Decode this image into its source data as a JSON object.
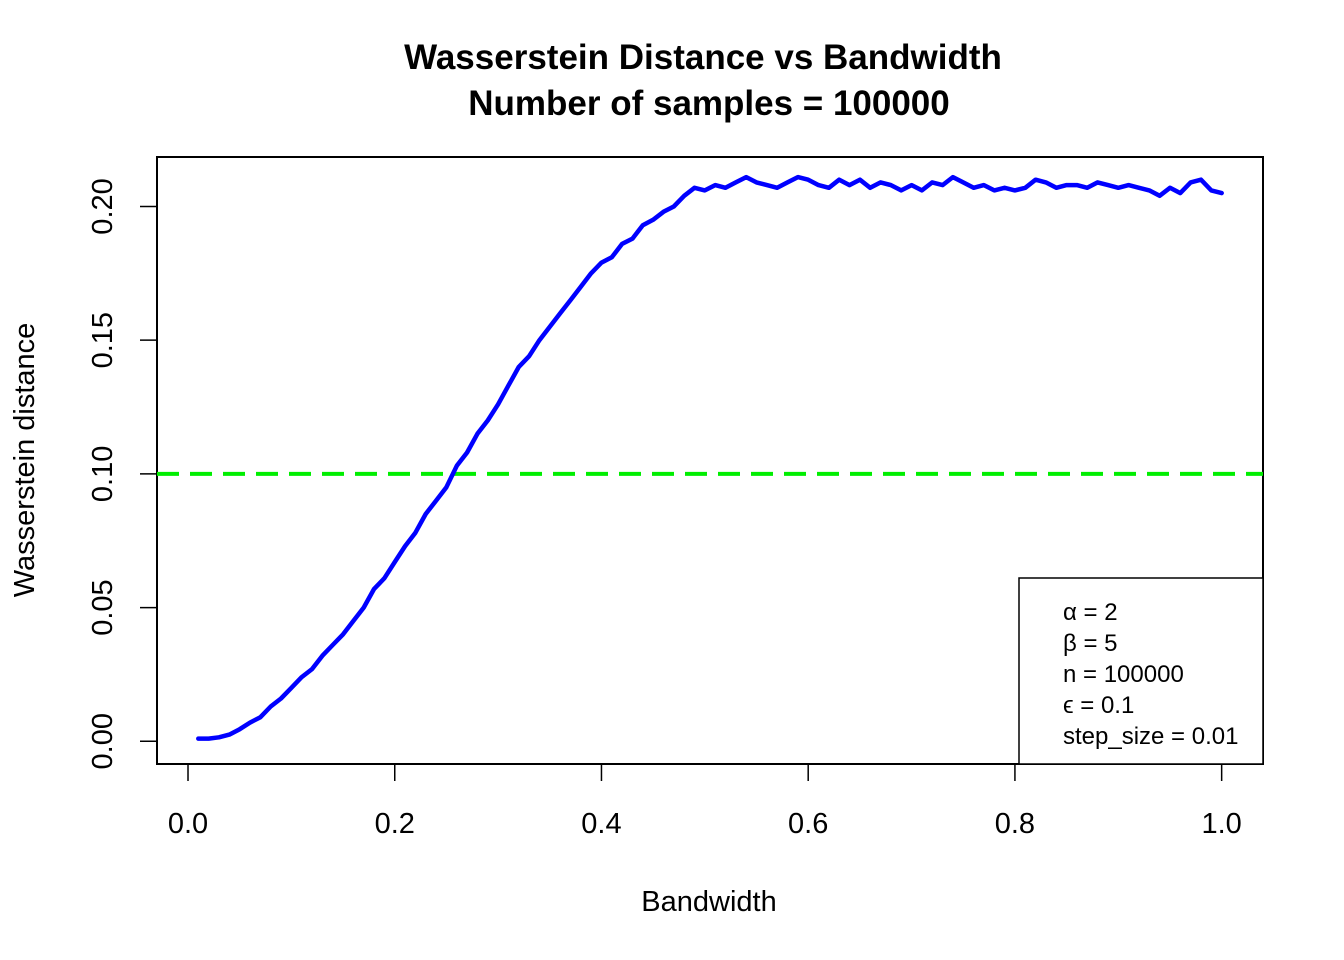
{
  "chart_data": {
    "type": "line",
    "title": "Wasserstein Distance vs Bandwidth",
    "subtitle": "Number of samples = 100000",
    "xlabel": "Bandwidth",
    "ylabel": "Wasserstein distance",
    "xlim": [
      -0.03,
      1.04
    ],
    "ylim": [
      -0.0085,
      0.2185
    ],
    "x_ticks": [
      0.0,
      0.2,
      0.4,
      0.6,
      0.8,
      1.0
    ],
    "x_tick_labels": [
      "0.0",
      "0.2",
      "0.4",
      "0.6",
      "0.8",
      "1.0"
    ],
    "y_ticks": [
      0.0,
      0.05,
      0.1,
      0.15,
      0.2
    ],
    "y_tick_labels": [
      "0.00",
      "0.05",
      "0.10",
      "0.15",
      "0.20"
    ],
    "grid": false,
    "series": [
      {
        "color": "#0000ff",
        "x": [
          0.01,
          0.02,
          0.03,
          0.04,
          0.05,
          0.06,
          0.07,
          0.08,
          0.09,
          0.1,
          0.11,
          0.12,
          0.13,
          0.14,
          0.15,
          0.16,
          0.17,
          0.18,
          0.19,
          0.2,
          0.21,
          0.22,
          0.23,
          0.24,
          0.25,
          0.26,
          0.27,
          0.28,
          0.29,
          0.3,
          0.31,
          0.32,
          0.33,
          0.34,
          0.35,
          0.36,
          0.37,
          0.38,
          0.39,
          0.4,
          0.41,
          0.42,
          0.43,
          0.44,
          0.45,
          0.46,
          0.47,
          0.48,
          0.49,
          0.5,
          0.51,
          0.52,
          0.53,
          0.54,
          0.55,
          0.56,
          0.57,
          0.58,
          0.59,
          0.6,
          0.61,
          0.62,
          0.63,
          0.64,
          0.65,
          0.66,
          0.67,
          0.68,
          0.69,
          0.7,
          0.71,
          0.72,
          0.73,
          0.74,
          0.75,
          0.76,
          0.77,
          0.78,
          0.79,
          0.8,
          0.81,
          0.82,
          0.83,
          0.84,
          0.85,
          0.86,
          0.87,
          0.88,
          0.89,
          0.9,
          0.91,
          0.92,
          0.93,
          0.94,
          0.95,
          0.96,
          0.97,
          0.98,
          0.99,
          1.0
        ],
        "y": [
          0.001,
          0.001,
          0.0015,
          0.0025,
          0.0045,
          0.007,
          0.009,
          0.013,
          0.016,
          0.02,
          0.024,
          0.027,
          0.032,
          0.036,
          0.04,
          0.045,
          0.05,
          0.057,
          0.061,
          0.067,
          0.073,
          0.078,
          0.085,
          0.09,
          0.095,
          0.103,
          0.108,
          0.115,
          0.12,
          0.126,
          0.133,
          0.14,
          0.144,
          0.15,
          0.155,
          0.16,
          0.165,
          0.17,
          0.175,
          0.179,
          0.181,
          0.186,
          0.188,
          0.193,
          0.195,
          0.198,
          0.2,
          0.204,
          0.207,
          0.206,
          0.208,
          0.207,
          0.209,
          0.211,
          0.209,
          0.208,
          0.207,
          0.209,
          0.211,
          0.21,
          0.208,
          0.207,
          0.21,
          0.208,
          0.21,
          0.207,
          0.209,
          0.208,
          0.206,
          0.208,
          0.206,
          0.209,
          0.208,
          0.211,
          0.209,
          0.207,
          0.208,
          0.206,
          0.207,
          0.206,
          0.207,
          0.21,
          0.209,
          0.207,
          0.208,
          0.208,
          0.207,
          0.209,
          0.208,
          0.207,
          0.208,
          0.207,
          0.206,
          0.204,
          0.207,
          0.205,
          0.209,
          0.21,
          0.206,
          0.205
        ]
      }
    ],
    "reference_line": {
      "y": 0.1,
      "color": "#00ee00",
      "style": "dashed"
    },
    "legend": {
      "placement": "bottom-right",
      "entries": [
        "α = 2",
        "β = 5",
        "n = 100000",
        "ϵ = 0.1",
        "step_size = 0.01"
      ]
    }
  }
}
